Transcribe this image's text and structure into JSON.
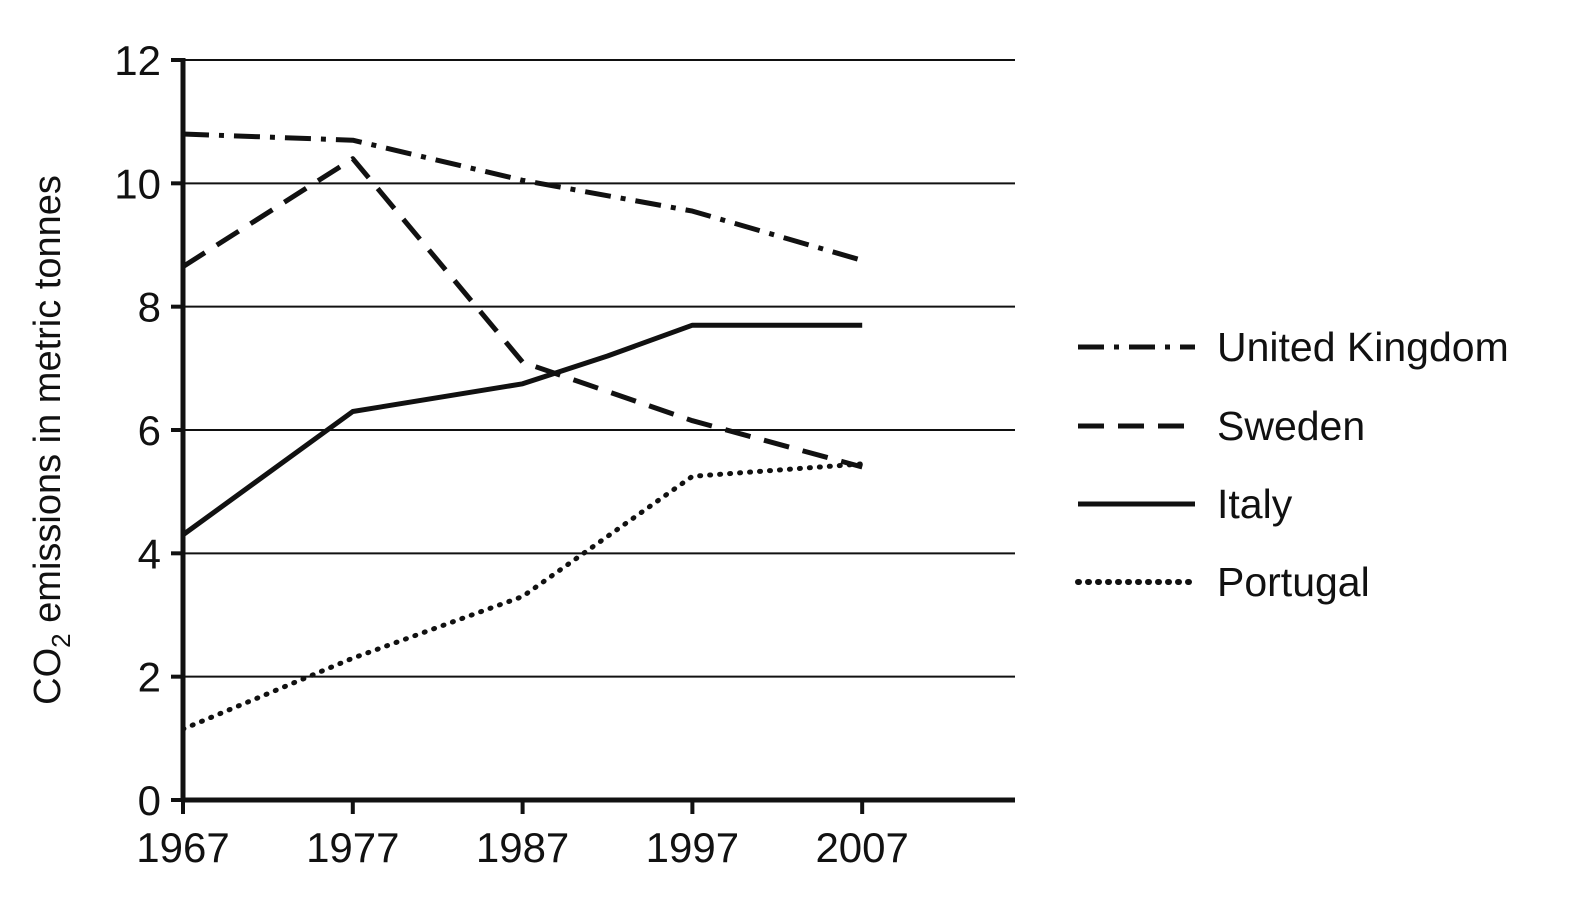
{
  "chart_data": {
    "type": "line",
    "title": "",
    "xlabel": "",
    "ylabel": "emissions in metric tonnes",
    "ylabel_prefix": "CO",
    "ylabel_subscript": "2",
    "x": [
      1967,
      1977,
      1987,
      1997,
      2007
    ],
    "x_tick_labels": [
      "1967",
      "1977",
      "1987",
      "1997",
      "2007"
    ],
    "xlim": [
      1967,
      2016
    ],
    "ylim": [
      0,
      12
    ],
    "y_ticks": [
      0,
      2,
      4,
      6,
      8,
      10,
      12
    ],
    "y_tick_labels": [
      "0",
      "2",
      "4",
      "6",
      "8",
      "10",
      "12"
    ],
    "grid": "horizontal",
    "legend_position": "right",
    "series": [
      {
        "name": "United Kingdom",
        "style": "dashdot",
        "x": [
          1967,
          1977,
          1987,
          1997,
          2007
        ],
        "values": [
          10.8,
          10.7,
          10.05,
          9.55,
          8.75
        ]
      },
      {
        "name": "Sweden",
        "style": "dashed",
        "x": [
          1967,
          1977,
          1987,
          1997,
          2007
        ],
        "values": [
          8.65,
          10.4,
          7.1,
          6.15,
          5.4
        ]
      },
      {
        "name": "Italy",
        "style": "solid",
        "x": [
          1967,
          1977,
          1987,
          1992,
          1997,
          2007
        ],
        "values": [
          4.3,
          6.3,
          6.75,
          7.2,
          7.7,
          7.7
        ]
      },
      {
        "name": "Portugal",
        "style": "dotted",
        "x": [
          1967,
          1977,
          1987,
          1997,
          2007
        ],
        "values": [
          1.15,
          2.3,
          3.3,
          5.25,
          5.45
        ]
      }
    ]
  }
}
